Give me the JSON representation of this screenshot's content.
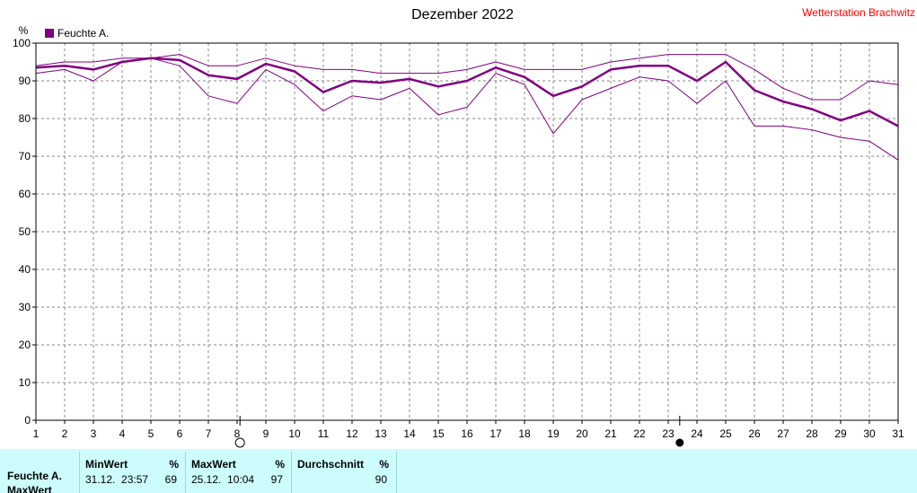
{
  "header": {
    "title": "Dezember 2022",
    "station": "Wetterstation Brachwitz"
  },
  "chart_data": {
    "type": "line",
    "ylabel": "%",
    "ylim": [
      0,
      100
    ],
    "yticks": [
      0,
      10,
      20,
      30,
      40,
      50,
      60,
      70,
      80,
      90,
      100
    ],
    "xlim": [
      1,
      31
    ],
    "x": [
      1,
      2,
      3,
      4,
      5,
      6,
      7,
      8,
      9,
      10,
      11,
      12,
      13,
      14,
      15,
      16,
      17,
      18,
      19,
      20,
      21,
      22,
      23,
      24,
      25,
      26,
      27,
      28,
      29,
      30,
      31
    ],
    "grid": true,
    "legend": "top-left",
    "moon_phases": [
      {
        "day": 8.1,
        "phase": "full"
      },
      {
        "day": 23.4,
        "phase": "new"
      }
    ],
    "series": [
      {
        "name": "Feuchte A.",
        "role": "mean",
        "color": "#800080",
        "values": [
          93.5,
          94,
          93,
          95,
          96,
          95.5,
          91.5,
          90.5,
          94.5,
          92.5,
          87,
          90,
          89.5,
          90.5,
          88.5,
          90,
          93.5,
          91,
          86,
          88.5,
          93,
          94,
          94,
          90,
          95,
          87.5,
          84.5,
          82.5,
          79.5,
          82,
          78
        ]
      },
      {
        "role": "max",
        "color": "#800080",
        "values": [
          94,
          95,
          95,
          96,
          96,
          97,
          94,
          94,
          96,
          94,
          93,
          93,
          92,
          92,
          92,
          93,
          95,
          93,
          93,
          93,
          95,
          96,
          97,
          97,
          97,
          93,
          88,
          85,
          85,
          90,
          89
        ]
      },
      {
        "role": "min",
        "color": "#800080",
        "values": [
          92,
          93,
          90,
          95,
          96,
          94,
          86,
          84,
          93,
          89,
          82,
          86,
          85,
          88,
          81,
          83,
          92,
          89,
          76,
          85,
          88,
          91,
          90,
          84,
          90,
          78,
          78,
          77,
          75,
          74,
          69
        ]
      }
    ]
  },
  "stats": {
    "row_labels": [
      "Feuchte A.",
      "MaxWert"
    ],
    "min": {
      "label": "MinWert",
      "unit": "%",
      "time": "31.12.  23:57",
      "value": "69"
    },
    "max": {
      "label": "MaxWert",
      "unit": "%",
      "time": "25.12.  10:04",
      "value": "97"
    },
    "avg": {
      "label": "Durchschnitt",
      "unit": "%",
      "time": "",
      "value": "90"
    }
  }
}
